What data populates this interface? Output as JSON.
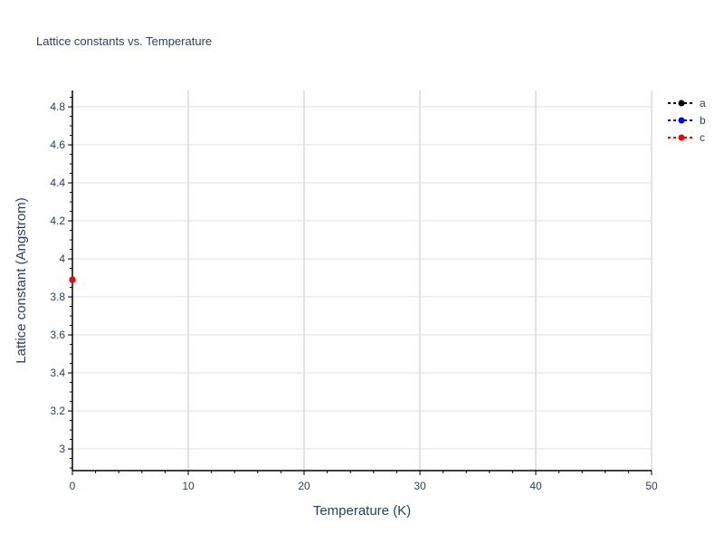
{
  "chart_data": {
    "type": "line",
    "title": "Lattice constants vs. Temperature",
    "xlabel": "Temperature (K)",
    "ylabel": "Lattice constant (Angstrom)",
    "xlim": [
      0,
      50
    ],
    "ylim": [
      2.886,
      4.886
    ],
    "xticks": [
      0,
      10,
      20,
      30,
      40,
      50
    ],
    "yticks": [
      3,
      3.2,
      3.4,
      3.6,
      3.8,
      4,
      4.2,
      4.4,
      4.6,
      4.8
    ],
    "ytick_labels": [
      "3",
      "3.2",
      "3.4",
      "3.6",
      "3.8",
      "4",
      "4.2",
      "4.4",
      "4.6",
      "4.8"
    ],
    "grid": true,
    "legend": "top-right",
    "series": [
      {
        "name": "a",
        "color": "#000000",
        "x": [
          0
        ],
        "y": [
          3.89
        ]
      },
      {
        "name": "b",
        "color": "#0000ff",
        "x": [
          0
        ],
        "y": [
          3.89
        ]
      },
      {
        "name": "c",
        "color": "#ff0000",
        "x": [
          0
        ],
        "y": [
          3.89
        ]
      }
    ]
  }
}
